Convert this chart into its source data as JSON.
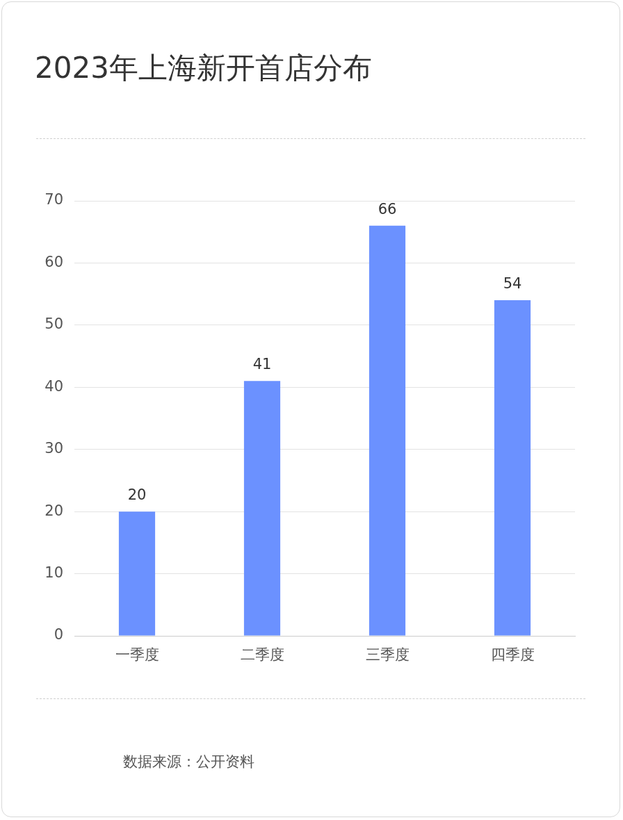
{
  "chart_data": {
    "type": "bar",
    "title": "2023年上海新开首店分布",
    "categories": [
      "一季度",
      "二季度",
      "三季度",
      "四季度"
    ],
    "values": [
      20,
      41,
      66,
      54
    ],
    "color": "#6b91ff",
    "ylim": [
      0,
      70
    ],
    "yticks": [
      0,
      10,
      20,
      30,
      40,
      50,
      60,
      70
    ],
    "grid": "y",
    "data_labels": true,
    "annotations": [
      "数据来源：公开资料"
    ]
  }
}
